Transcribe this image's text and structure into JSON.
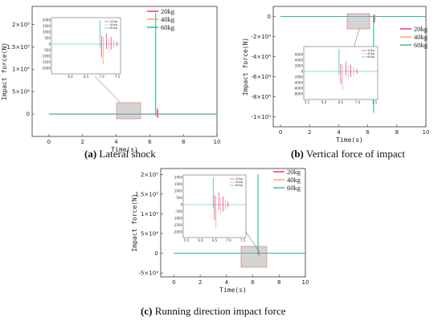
{
  "colors": {
    "20kg": "#e8268f",
    "40kg": "#f5a35a",
    "60kg": "#2bb89a"
  },
  "chart_data": [
    {
      "id": "a",
      "type": "line",
      "caption_letter": "(a)",
      "caption_text": " Lateral shock",
      "xlabel": "Time(s)",
      "ylabel": "Impact force(N)",
      "xlim": [
        -1,
        10
      ],
      "ylim": [
        -50000,
        240000
      ],
      "xticks": [
        "0",
        "2",
        "4",
        "6",
        "8",
        "10"
      ],
      "yticks": [
        {
          "v": 200000,
          "label": "2×10⁵"
        },
        {
          "v": 150000,
          "label": "1.5×10⁵"
        },
        {
          "v": 100000,
          "label": "1×10⁵"
        },
        {
          "v": 50000,
          "label": "5×10⁴"
        },
        {
          "v": 0,
          "label": "0"
        }
      ],
      "series": [
        {
          "name": "20kg",
          "spikes": [
            {
              "t": 6.45,
              "max": 12000,
              "min": -8000
            }
          ]
        },
        {
          "name": "40kg",
          "spikes": [
            {
              "t": 6.5,
              "max": 9000,
              "min": -9000
            }
          ]
        },
        {
          "name": "60kg",
          "spikes": [
            {
              "t": 6.35,
              "max": 225000,
              "min": -4000
            }
          ]
        }
      ],
      "highlight_x": [
        5.5,
        7.5
      ],
      "inset": {
        "xlim": [
          5.5,
          7.5
        ],
        "ylim": [
          -2000,
          2000
        ],
        "xticks": [
          "6.0",
          "6.5",
          "7.0",
          "7.5"
        ],
        "yticks": [
          "2000",
          "1500",
          "1000",
          "500",
          "0",
          "-500",
          "-1000",
          "-1500",
          "-2000"
        ],
        "legend": [
          "20kg",
          "40kg",
          "60kg"
        ]
      }
    },
    {
      "id": "b",
      "type": "line",
      "caption_letter": "(b)",
      "caption_text": " Vertical force of impact",
      "xlabel": "Time(s)",
      "ylabel": "Impact force(N)",
      "xlim": [
        -0.5,
        10
      ],
      "ylim": [
        -110000,
        10000
      ],
      "xticks": [
        "0",
        "2",
        "4",
        "6",
        "8",
        "10"
      ],
      "yticks": [
        {
          "v": 0,
          "label": "0"
        },
        {
          "v": -20000,
          "label": "-2×10⁴"
        },
        {
          "v": -40000,
          "label": "-4×10⁴"
        },
        {
          "v": -60000,
          "label": "-6×10⁴"
        },
        {
          "v": -80000,
          "label": "-8×10⁴"
        },
        {
          "v": -100000,
          "label": "-1×10⁵"
        }
      ],
      "series": [
        {
          "name": "20kg",
          "spikes": [
            {
              "t": 6.45,
              "max": 2000,
              "min": -6000
            }
          ]
        },
        {
          "name": "40kg",
          "spikes": [
            {
              "t": 6.5,
              "max": 1500,
              "min": -5000
            }
          ]
        },
        {
          "name": "60kg",
          "spikes": [
            {
              "t": 6.4,
              "max": 1000,
              "min": -96000
            }
          ]
        }
      ],
      "highlight_x": [
        5.5,
        7.5
      ],
      "inset": {
        "xlim": [
          5.5,
          7.5
        ],
        "ylim": [
          -8000,
          8000
        ],
        "xticks": [
          "5.5",
          "6.0",
          "6.5",
          "7.0",
          "7.5"
        ],
        "yticks": [
          "6000",
          "4000",
          "2000",
          "0",
          "-2000",
          "-4000",
          "-6000",
          "-8000"
        ],
        "legend": [
          "20kg",
          "40kg",
          "60kg"
        ]
      }
    },
    {
      "id": "c",
      "type": "line",
      "caption_letter": "(c)",
      "caption_text": " Running direction impact force",
      "xlabel": "Time(s)",
      "ylabel": "Impact force(N)",
      "xlim": [
        -1,
        10
      ],
      "ylim": [
        -60000,
        215000
      ],
      "xticks": [
        "0",
        "2",
        "4",
        "6",
        "8",
        "10"
      ],
      "yticks": [
        {
          "v": 200000,
          "label": "2×10⁵"
        },
        {
          "v": 150000,
          "label": "1.5×10⁵"
        },
        {
          "v": 100000,
          "label": "1×10⁵"
        },
        {
          "v": 50000,
          "label": "5×10⁴"
        },
        {
          "v": 0,
          "label": "0"
        },
        {
          "v": -50000,
          "label": "-5×10⁴"
        }
      ],
      "series": [
        {
          "name": "20kg",
          "spikes": [
            {
              "t": 6.45,
              "max": 6000,
              "min": -5000
            }
          ]
        },
        {
          "name": "40kg",
          "spikes": [
            {
              "t": 6.5,
              "max": 5000,
              "min": -8000
            }
          ]
        },
        {
          "name": "60kg",
          "spikes": [
            {
              "t": 6.4,
              "max": 200000,
              "min": -3000
            }
          ]
        }
      ],
      "highlight_x": [
        5.5,
        7.5
      ],
      "inset": {
        "xlim": [
          5.5,
          7.5
        ],
        "ylim": [
          -2000,
          2000
        ],
        "xticks": [
          "5.5",
          "6.0",
          "6.5",
          "7.0",
          "7.5"
        ],
        "yticks": [
          "2000",
          "1500",
          "1000",
          "500",
          "0",
          "-500",
          "-1000",
          "-1500",
          "-2000"
        ],
        "legend": [
          "20kg",
          "40kg",
          "60kg"
        ]
      }
    }
  ]
}
